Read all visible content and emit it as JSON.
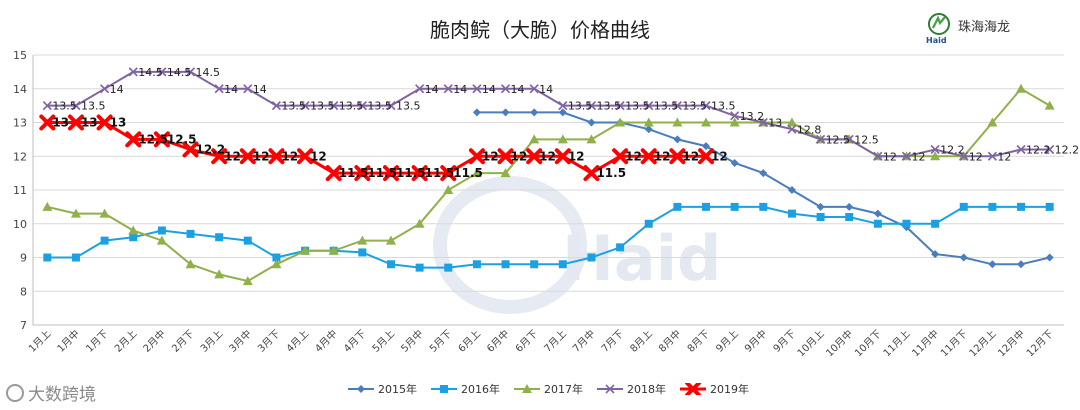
{
  "chart_data": {
    "type": "line",
    "title": "脆肉鲩（大脆）价格曲线",
    "categories": [
      "1月上",
      "1月中",
      "1月下",
      "2月上",
      "2月中",
      "2月下",
      "3月上",
      "3月中",
      "3月下",
      "4月上",
      "4月中",
      "4月下",
      "5月上",
      "5月中",
      "5月下",
      "6月上",
      "6月中",
      "6月下",
      "7月上",
      "7月中",
      "7月下",
      "8月上",
      "8月中",
      "8月下",
      "9月上",
      "9月中",
      "9月下",
      "10月上",
      "10月中",
      "10月下",
      "11月上",
      "11月中",
      "11月下",
      "12月上",
      "12月中",
      "12月下"
    ],
    "ylim": [
      7,
      15
    ],
    "yticks": [
      7,
      8,
      9,
      10,
      11,
      12,
      13,
      14,
      15
    ],
    "grid": true,
    "legend_position": "bottom",
    "series": [
      {
        "name": "2015年",
        "color": "#4a7ebb",
        "marker": "diamond",
        "labels": false,
        "values": [
          null,
          null,
          null,
          null,
          null,
          null,
          null,
          null,
          null,
          null,
          null,
          null,
          null,
          null,
          null,
          13.3,
          13.3,
          13.3,
          13.3,
          13.0,
          13.0,
          12.8,
          12.5,
          12.3,
          11.8,
          11.5,
          11.0,
          10.5,
          10.5,
          10.3,
          9.9,
          9.1,
          9.0,
          8.8,
          8.8,
          9.0
        ]
      },
      {
        "name": "2016年",
        "color": "#1ba1e2",
        "marker": "square",
        "labels": false,
        "values": [
          9.0,
          9.0,
          9.5,
          9.6,
          9.8,
          9.7,
          9.6,
          9.5,
          9.0,
          9.2,
          9.2,
          9.15,
          8.8,
          8.7,
          8.7,
          8.8,
          8.8,
          8.8,
          8.8,
          9.0,
          9.3,
          10.0,
          10.5,
          10.5,
          10.5,
          10.5,
          10.3,
          10.2,
          10.2,
          10.0,
          10.0,
          10.0,
          10.5,
          10.5,
          10.5,
          10.5
        ]
      },
      {
        "name": "2017年",
        "color": "#8fb04a",
        "marker": "triangle",
        "labels": false,
        "values": [
          10.5,
          10.3,
          10.3,
          9.8,
          9.5,
          8.8,
          8.5,
          8.3,
          8.8,
          9.2,
          9.2,
          9.5,
          9.5,
          10.0,
          11.0,
          11.5,
          11.5,
          12.5,
          12.5,
          12.5,
          13.0,
          13.0,
          13.0,
          13.0,
          13.0,
          13.0,
          13.0,
          12.5,
          12.5,
          12.0,
          12.0,
          12.0,
          12.0,
          13.0,
          14.0,
          13.5
        ]
      },
      {
        "name": "2018年",
        "color": "#8064a2",
        "marker": "x",
        "labels": true,
        "values": [
          13.5,
          13.5,
          14.0,
          14.5,
          14.5,
          14.5,
          14.0,
          14.0,
          13.5,
          13.5,
          13.5,
          13.5,
          13.5,
          14.0,
          14.0,
          14.0,
          14.0,
          14.0,
          13.5,
          13.5,
          13.5,
          13.5,
          13.5,
          13.5,
          13.2,
          13.0,
          12.8,
          12.5,
          12.5,
          12.0,
          12.0,
          12.2,
          12.0,
          12.0,
          12.2,
          12.2
        ]
      },
      {
        "name": "2019年",
        "color": "#ff0000",
        "marker": "star",
        "labels": true,
        "values": [
          13.0,
          13.0,
          13.0,
          12.5,
          12.5,
          12.2,
          12.0,
          12.0,
          12.0,
          12.0,
          11.5,
          11.5,
          11.5,
          11.5,
          11.5,
          12.0,
          12.0,
          12.0,
          12.0,
          11.5,
          12.0,
          12.0,
          12.0,
          12.0,
          null,
          null,
          null,
          null,
          null,
          null,
          null,
          null,
          null,
          null,
          null,
          null
        ]
      }
    ]
  },
  "logo": {
    "name": "珠海海龙",
    "sub": "Haid"
  },
  "watermark": {
    "center": "Haid",
    "bottom": "大数跨境"
  }
}
